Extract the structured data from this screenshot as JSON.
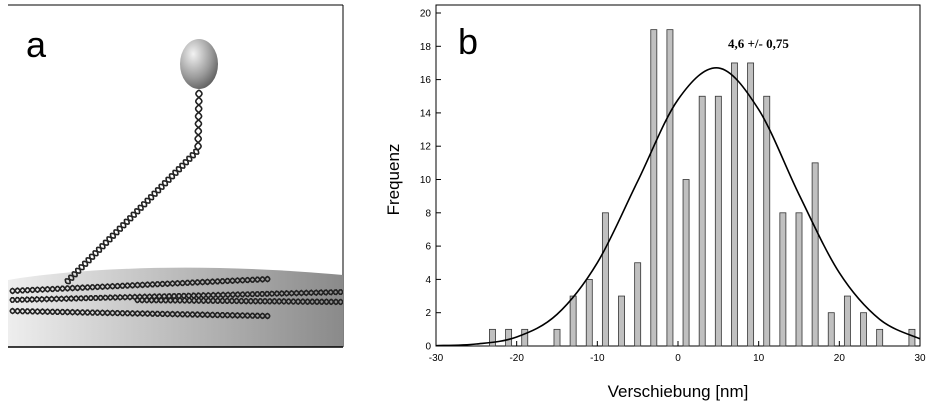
{
  "panel_a": {
    "label": "a"
  },
  "chart_data": {
    "type": "bar",
    "panel_label": "b",
    "annotation": "4,6 +/- 0,75",
    "xlabel": "Verschiebung [nm]",
    "ylabel": "Frequenz",
    "x": [
      -23,
      -21,
      -19,
      -15,
      -13,
      -11,
      -9,
      -7,
      -5,
      -3,
      -1,
      1,
      3,
      5,
      7,
      9,
      11,
      13,
      15,
      17,
      19,
      21,
      23,
      25,
      29
    ],
    "values": [
      1,
      1,
      1,
      1,
      3,
      4,
      8,
      3,
      5,
      19,
      19,
      10,
      15,
      15,
      17,
      17,
      15,
      8,
      8,
      11,
      2,
      3,
      2,
      1,
      1
    ],
    "color": "#c0c0c0",
    "fit": {
      "color": "#000000",
      "x": [
        -30,
        -25,
        -20,
        -15,
        -10,
        -5,
        0,
        5,
        10,
        15,
        20,
        25,
        30
      ],
      "values": [
        0.02,
        0.12,
        0.54,
        1.9,
        5.0,
        9.9,
        14.8,
        16.7,
        14.2,
        9.1,
        4.4,
        1.6,
        0.43
      ]
    },
    "xlim": [
      -30,
      30
    ],
    "xticks": [
      -30,
      -20,
      -10,
      0,
      10,
      20,
      30
    ],
    "ylim": [
      0,
      20
    ],
    "yticks": [
      0,
      2,
      4,
      6,
      8,
      10,
      12,
      14,
      16,
      18,
      20
    ]
  }
}
